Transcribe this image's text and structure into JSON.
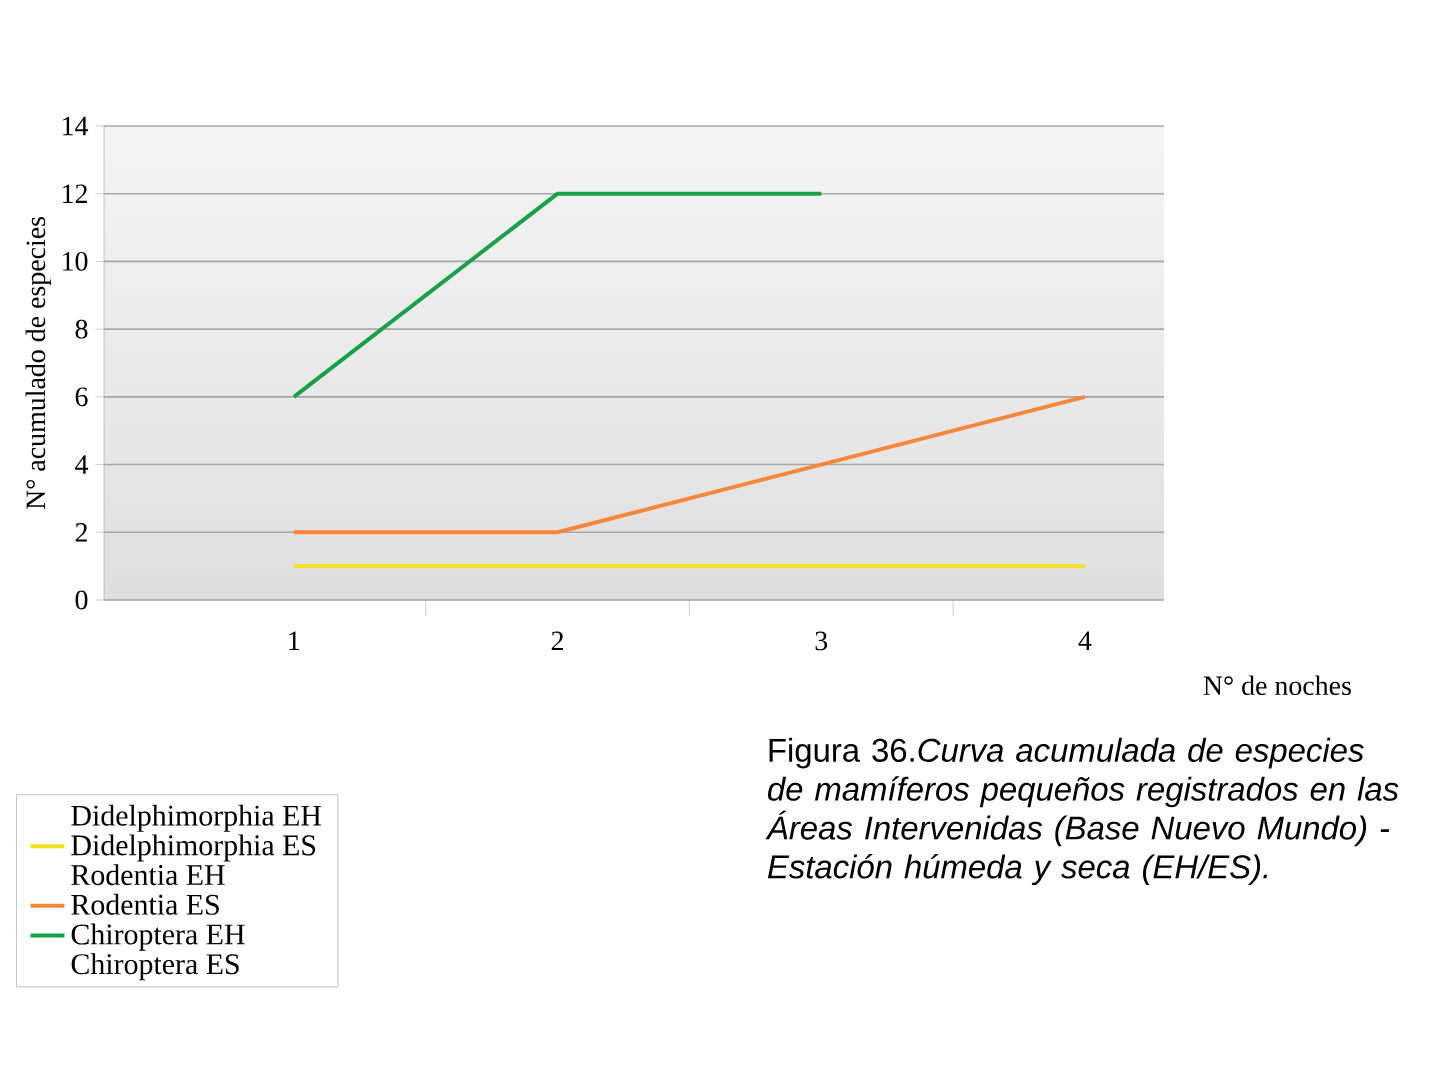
{
  "chart_data": {
    "type": "line",
    "xlabel": "N° de noches",
    "ylabel": "N° acumulado de especies",
    "categories": [
      "1",
      "2",
      "3",
      "4"
    ],
    "series": [
      {
        "name": "Didelphimorphia EH",
        "values": [
          null,
          null,
          null,
          null
        ]
      },
      {
        "name": "Didelphimorphia ES",
        "color": "#f5e21c",
        "values": [
          1,
          1,
          1,
          1
        ]
      },
      {
        "name": "Rodentia EH",
        "values": [
          null,
          null,
          null,
          null
        ]
      },
      {
        "name": "Rodentia ES",
        "color": "#f5883a",
        "values": [
          2,
          2,
          4,
          6
        ]
      },
      {
        "name": "Chiroptera EH",
        "color": "#17a24a",
        "values": [
          6,
          12,
          12,
          null
        ]
      },
      {
        "name": "Chiroptera ES",
        "values": [
          null,
          null,
          null,
          null
        ]
      }
    ],
    "ylim": [
      0,
      14
    ],
    "yticks": [
      0,
      2,
      4,
      6,
      8,
      10,
      12,
      14
    ],
    "grid": "y",
    "legend": "bottom left",
    "line_style": "solid",
    "marker": "none",
    "annotations": [
      "Figura 36.*Curva acumulada de especies de mamíferos pequeños registrados en las Áreas Intervenidas (Base Nuevo Mundo) - Estación húmeda y seca (EH/ES).*"
    ]
  }
}
